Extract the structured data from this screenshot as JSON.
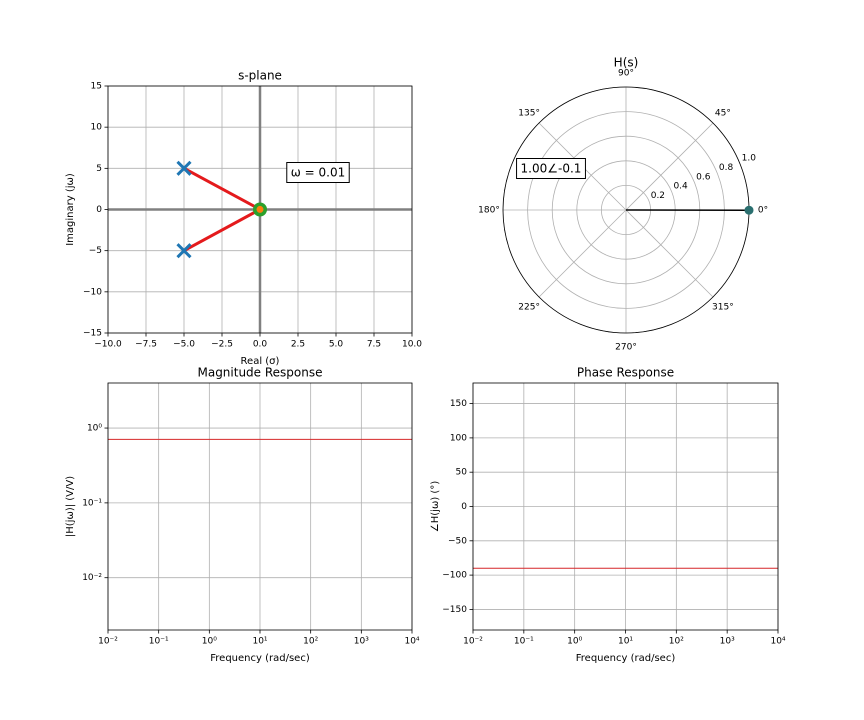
{
  "chart_data": [
    {
      "type": "pole-zero",
      "title": "s-plane",
      "xlabel": "Real (σ)",
      "ylabel": "Imaginary (jω)",
      "xlim": [
        -10,
        10
      ],
      "ylim": [
        -15,
        15
      ],
      "xticks": [
        {
          "value": -10,
          "label": "−10.0"
        },
        {
          "value": -7.5,
          "label": "−7.5"
        },
        {
          "value": -5,
          "label": "−5.0"
        },
        {
          "value": -2.5,
          "label": "−2.5"
        },
        {
          "value": 0,
          "label": "0.0"
        },
        2.5,
        {
          "value": 5,
          "label": "5.0"
        },
        7.5,
        {
          "value": 10,
          "label": "10.0"
        }
      ],
      "yticks": [
        {
          "value": -15,
          "label": "−15"
        },
        {
          "value": -10,
          "label": "−10"
        },
        {
          "value": -5,
          "label": "−5"
        },
        0,
        5,
        10,
        15
      ],
      "grid": true,
      "poles": {
        "x": [
          -5,
          -5
        ],
        "y": [
          5,
          -5
        ],
        "color": "#1f77b4"
      },
      "zeros": {
        "x": [
          0
        ],
        "y": [
          0
        ],
        "color": "#2ca02c"
      },
      "test_point": {
        "x": 0,
        "y": 0.01,
        "color": "#ff7f0e"
      },
      "vector_color": "#e41a1c",
      "annotation": "ω = 0.01"
    },
    {
      "type": "polar",
      "title": "H(s)",
      "rlim": [
        0,
        1
      ],
      "rticks": [
        0.2,
        0.4,
        0.6,
        0.8,
        {
          "value": 1,
          "label": "1.0"
        }
      ],
      "thetaticks": [
        {
          "value": 0,
          "label": "0°"
        },
        {
          "value": 45,
          "label": "45°"
        },
        {
          "value": 90,
          "label": "90°"
        },
        {
          "value": 135,
          "label": "135°"
        },
        {
          "value": 180,
          "label": "180°"
        },
        {
          "value": 225,
          "label": "225°"
        },
        {
          "value": 270,
          "label": "270°"
        },
        {
          "value": 315,
          "label": "315°"
        }
      ],
      "grid": true,
      "vector": {
        "r": 1,
        "theta": -0.1
      },
      "color": "#000000",
      "marker_color": "#2a6f6f",
      "annotation": "1.00∠-0.1"
    },
    {
      "type": "line",
      "title": "Magnitude Response",
      "xlabel": "Frequency (rad/sec)",
      "ylabel": "|H(jω)| (V/V)",
      "xscale": "log",
      "yscale": "log",
      "xlim": [
        0.01,
        10000
      ],
      "ylim": [
        0.002,
        4
      ],
      "xticks": [
        {
          "value": 0.01,
          "label": "10⁻²"
        },
        {
          "value": 0.1,
          "label": "10⁻¹"
        },
        {
          "value": 1,
          "label": "10⁰"
        },
        {
          "value": 10,
          "label": "10¹"
        },
        {
          "value": 100,
          "label": "10²"
        },
        {
          "value": 1000,
          "label": "10³"
        },
        {
          "value": 10000,
          "label": "10⁴"
        }
      ],
      "yticks": [
        {
          "value": 0.01,
          "label": "10⁻²"
        },
        {
          "value": 0.1,
          "label": "10⁻¹"
        },
        {
          "value": 1,
          "label": "10⁰"
        }
      ],
      "grid": true,
      "x": [
        0.01,
        10000
      ],
      "series": [
        {
          "color": "#d62728",
          "values": [
            0.707,
            0.707
          ]
        }
      ]
    },
    {
      "type": "line",
      "title": "Phase Response",
      "xlabel": "Frequency (rad/sec)",
      "ylabel": "∠H(jω) (°)",
      "xscale": "log",
      "xlim": [
        0.01,
        10000
      ],
      "ylim": [
        -180,
        180
      ],
      "xticks": [
        {
          "value": 0.01,
          "label": "10⁻²"
        },
        {
          "value": 0.1,
          "label": "10⁻¹"
        },
        {
          "value": 1,
          "label": "10⁰"
        },
        {
          "value": 10,
          "label": "10¹"
        },
        {
          "value": 100,
          "label": "10²"
        },
        {
          "value": 1000,
          "label": "10³"
        },
        {
          "value": 10000,
          "label": "10⁴"
        }
      ],
      "yticks": [
        {
          "value": -150,
          "label": "−150"
        },
        {
          "value": -100,
          "label": "−100"
        },
        {
          "value": -50,
          "label": "−50"
        },
        0,
        50,
        100,
        150
      ],
      "grid": true,
      "x": [
        0.01,
        10000
      ],
      "series": [
        {
          "color": "#d62728",
          "values": [
            -90,
            -90
          ]
        }
      ]
    }
  ]
}
